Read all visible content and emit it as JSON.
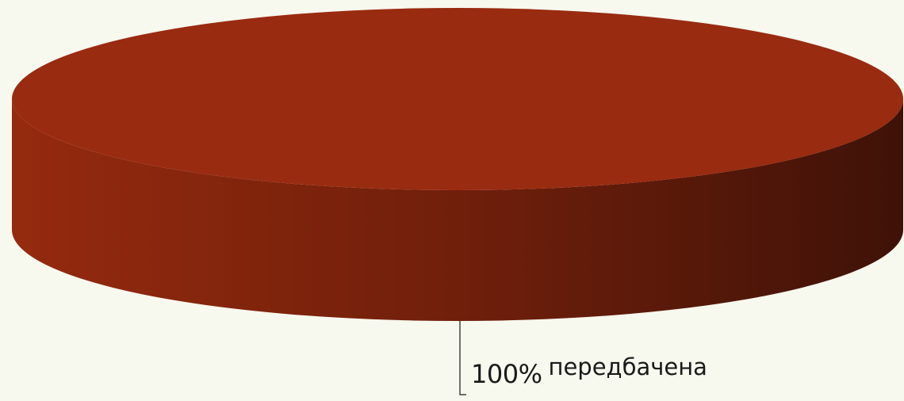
{
  "chart_data": {
    "type": "pie",
    "style": "3d",
    "categories": [
      "передбачена"
    ],
    "values": [
      100
    ],
    "data_labels": [
      "100%"
    ],
    "colors": {
      "slice_top": "#992b10",
      "slice_side_light": "#952a0e",
      "slice_side_dark": "#3f1207",
      "background": "#f7f8ee",
      "leader_line": "#1a1a1a"
    },
    "legend": "none",
    "title": ""
  }
}
